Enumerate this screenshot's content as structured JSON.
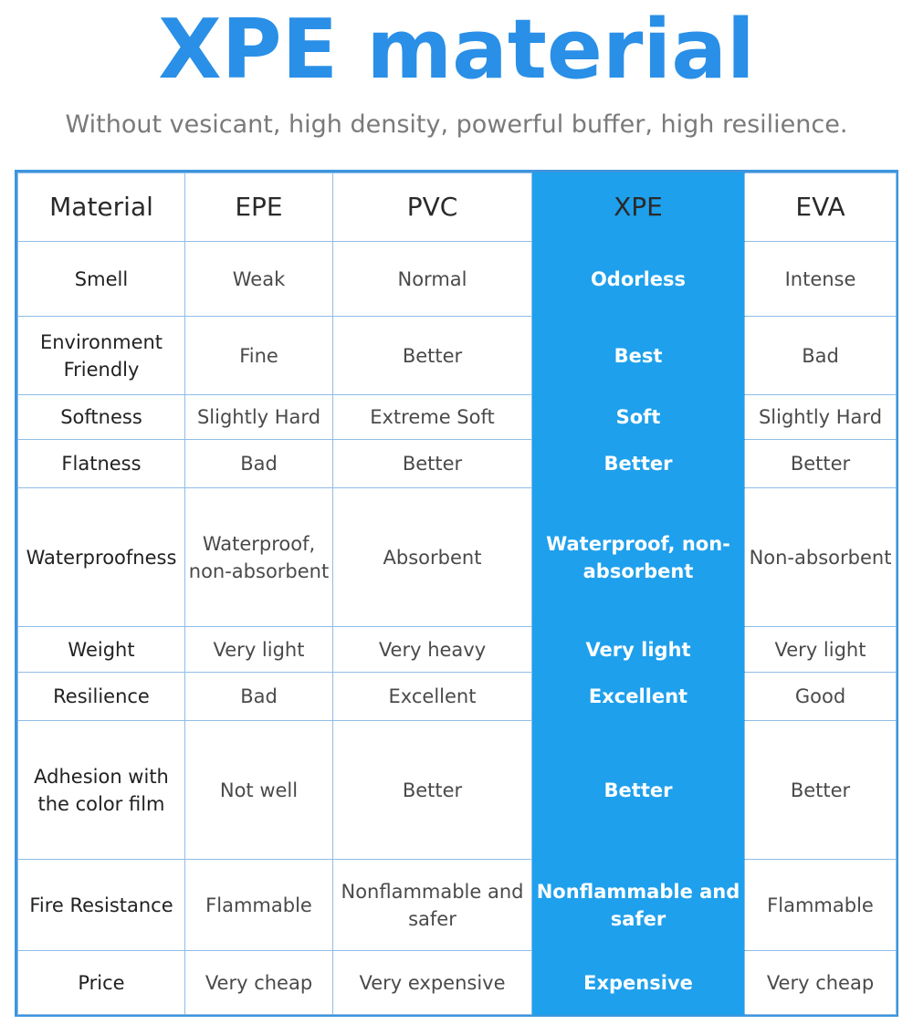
{
  "title": "XPE material",
  "subtitle": "Without vesicant, high density, powerful buffer, high resilience.",
  "colors": {
    "title": "#2a8fe6",
    "highlight": "#1ea0ec",
    "border": "#3d95e0"
  },
  "table": {
    "header": [
      "Material",
      "EPE",
      "PVC",
      "XPE",
      "EVA"
    ],
    "highlight_column": "XPE",
    "rows": [
      {
        "label": "Smell",
        "epe": "Weak",
        "pvc": "Normal",
        "xpe": "Odorless",
        "eva": "Intense"
      },
      {
        "label": "Environment Friendly",
        "epe": "Fine",
        "pvc": "Better",
        "xpe": "Best",
        "eva": "Bad"
      },
      {
        "label": "Softness",
        "epe": "Slightly Hard",
        "pvc": "Extreme Soft",
        "xpe": "Soft",
        "eva": "Slightly Hard"
      },
      {
        "label": "Flatness",
        "epe": "Bad",
        "pvc": "Better",
        "xpe": "Better",
        "eva": "Better"
      },
      {
        "label": "Waterproofness",
        "epe": "Waterproof, non-absorbent",
        "pvc": "Absorbent",
        "xpe": "Waterproof, non-absorbent",
        "eva": "Non-absorbent"
      },
      {
        "label": "Weight",
        "epe": "Very light",
        "pvc": "Very heavy",
        "xpe": "Very light",
        "eva": "Very light"
      },
      {
        "label": "Resilience",
        "epe": "Bad",
        "pvc": "Excellent",
        "xpe": "Excellent",
        "eva": "Good"
      },
      {
        "label": "Adhesion with the color film",
        "epe": "Not well",
        "pvc": "Better",
        "xpe": "Better",
        "eva": "Better"
      },
      {
        "label": "Fire Resistance",
        "epe": "Flammable",
        "pvc": "Nonflammable and safer",
        "xpe": "Nonflammable and safer",
        "eva": "Flammable"
      },
      {
        "label": "Price",
        "epe": "Very cheap",
        "pvc": "Very expensive",
        "xpe": "Expensive",
        "eva": "Very cheap"
      }
    ]
  }
}
